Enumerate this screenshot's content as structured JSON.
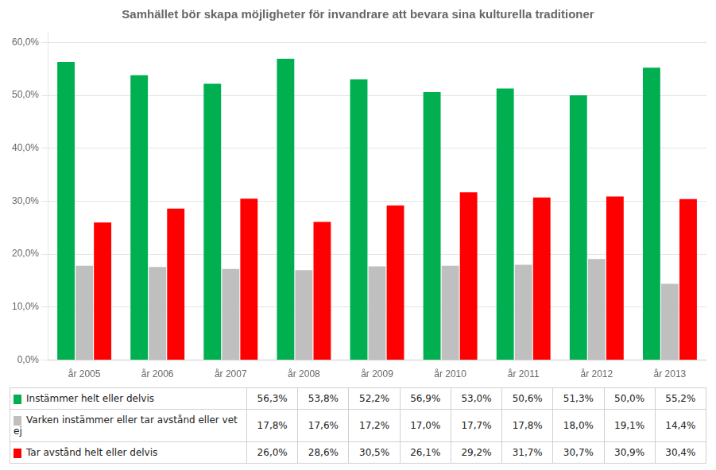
{
  "chart_data": {
    "type": "bar",
    "title": "Samhället bör skapa möjligheter för invandrare att bevara sina kulturella traditioner",
    "categories": [
      "år 2005",
      "år 2006",
      "år 2007",
      "år 2008",
      "år 2009",
      "år 2010",
      "år 2011",
      "år 2012",
      "år 2013"
    ],
    "series": [
      {
        "name": "Instämmer helt eller delvis",
        "color": "#00B050",
        "values": [
          0.563,
          0.538,
          0.522,
          0.569,
          0.53,
          0.506,
          0.513,
          0.5,
          0.552
        ],
        "value_labels": [
          "56,3%",
          "53,8%",
          "52,2%",
          "56,9%",
          "53,0%",
          "50,6%",
          "51,3%",
          "50,0%",
          "55,2%"
        ]
      },
      {
        "name": "Varken instämmer eller tar avstånd eller vet ej",
        "color": "#BFBFBF",
        "values": [
          0.178,
          0.176,
          0.172,
          0.17,
          0.177,
          0.178,
          0.18,
          0.191,
          0.144
        ],
        "value_labels": [
          "17,8%",
          "17,6%",
          "17,2%",
          "17,0%",
          "17,7%",
          "17,8%",
          "18,0%",
          "19,1%",
          "14,4%"
        ]
      },
      {
        "name": "Tar avstånd helt eller delvis",
        "color": "#FF0000",
        "values": [
          0.26,
          0.286,
          0.305,
          0.261,
          0.292,
          0.317,
          0.307,
          0.309,
          0.304
        ],
        "value_labels": [
          "26,0%",
          "28,6%",
          "30,5%",
          "26,1%",
          "29,2%",
          "31,7%",
          "30,7%",
          "30,9%",
          "30,4%"
        ]
      }
    ],
    "ylim": [
      0.0,
      0.62
    ],
    "yticks": [
      {
        "value": 0.0,
        "label": "0,0%"
      },
      {
        "value": 0.1,
        "label": "10,0%"
      },
      {
        "value": 0.2,
        "label": "20,0%"
      },
      {
        "value": 0.3,
        "label": "30,0%"
      },
      {
        "value": 0.4,
        "label": "40,0%"
      },
      {
        "value": 0.5,
        "label": "50,0%"
      },
      {
        "value": 0.6,
        "label": "60,0%"
      }
    ],
    "grid": true,
    "legend": "bottom",
    "data_labels": true
  }
}
